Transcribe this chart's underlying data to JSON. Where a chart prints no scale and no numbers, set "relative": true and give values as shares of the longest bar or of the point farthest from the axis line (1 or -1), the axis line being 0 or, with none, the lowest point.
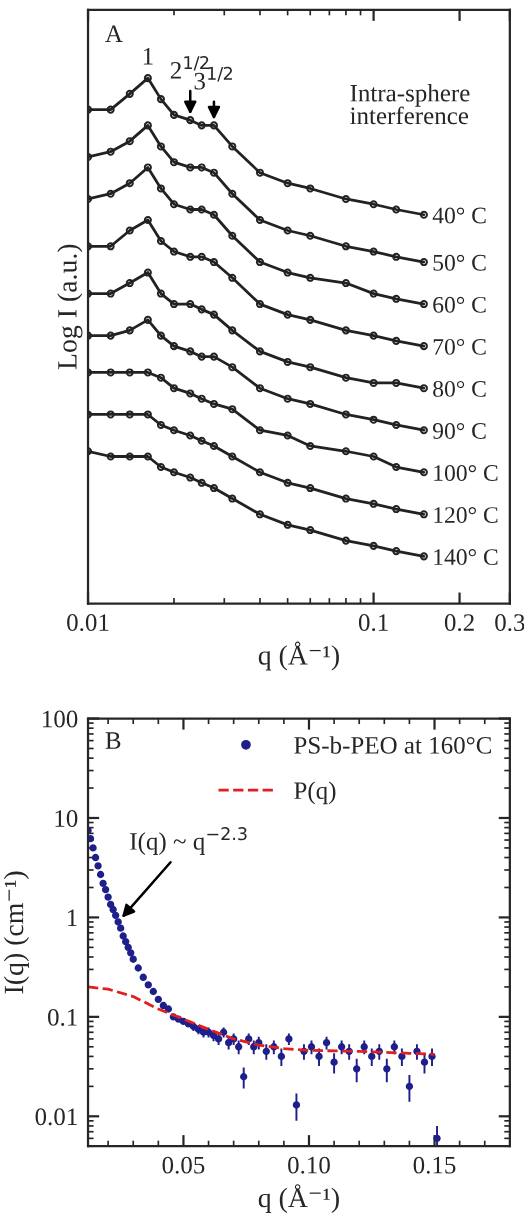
{
  "chart_data": [
    {
      "type": "line",
      "relative": true,
      "log": "x",
      "marker": "circle",
      "tick_labels": "x",
      "xlabel": "q (Å⁻¹)",
      "ylabel": "Log I (a.u.)",
      "xlim": [
        0.01,
        0.3
      ],
      "xticks": [
        0.01,
        0.1,
        0.2,
        0.3
      ],
      "x": [
        0.01,
        0.012,
        0.014,
        0.0162,
        0.018,
        0.02,
        0.0228,
        0.025,
        0.0276,
        0.032,
        0.04,
        0.05,
        0.06,
        0.08,
        0.1,
        0.12,
        0.15
      ],
      "series": [
        {
          "name": "40° C",
          "color": "#222222",
          "values": [
            0.94,
            0.94,
            0.97,
            1.0,
            0.96,
            0.93,
            0.92,
            0.91,
            0.91,
            0.87,
            0.82,
            0.8,
            0.79,
            0.77,
            0.76,
            0.75,
            0.74
          ]
        },
        {
          "name": "50° C",
          "color": "#222222",
          "values": [
            0.85,
            0.86,
            0.88,
            0.91,
            0.87,
            0.84,
            0.83,
            0.83,
            0.82,
            0.78,
            0.73,
            0.71,
            0.7,
            0.68,
            0.67,
            0.66,
            0.65
          ]
        },
        {
          "name": "60° C",
          "color": "#222222",
          "values": [
            0.77,
            0.78,
            0.8,
            0.83,
            0.79,
            0.76,
            0.75,
            0.75,
            0.74,
            0.7,
            0.65,
            0.63,
            0.62,
            0.61,
            0.59,
            0.58,
            0.57
          ]
        },
        {
          "name": "70° C",
          "color": "#222222",
          "values": [
            0.68,
            0.68,
            0.71,
            0.73,
            0.69,
            0.67,
            0.66,
            0.66,
            0.65,
            0.62,
            0.57,
            0.55,
            0.54,
            0.52,
            0.51,
            0.5,
            0.49
          ]
        },
        {
          "name": "80° C",
          "color": "#222222",
          "values": [
            0.59,
            0.59,
            0.61,
            0.63,
            0.59,
            0.57,
            0.57,
            0.56,
            0.55,
            0.52,
            0.48,
            0.46,
            0.45,
            0.43,
            0.42,
            0.42,
            0.41
          ]
        },
        {
          "name": "90° C",
          "color": "#222222",
          "values": [
            0.51,
            0.51,
            0.52,
            0.54,
            0.51,
            0.49,
            0.48,
            0.47,
            0.47,
            0.45,
            0.41,
            0.39,
            0.38,
            0.36,
            0.35,
            0.34,
            0.33
          ]
        },
        {
          "name": "100° C",
          "color": "#222222",
          "values": [
            0.44,
            0.44,
            0.44,
            0.44,
            0.43,
            0.41,
            0.4,
            0.39,
            0.38,
            0.37,
            0.33,
            0.32,
            0.3,
            0.29,
            0.28,
            0.26,
            0.25
          ]
        },
        {
          "name": "120° C",
          "color": "#222222",
          "values": [
            0.36,
            0.36,
            0.36,
            0.36,
            0.34,
            0.33,
            0.32,
            0.31,
            0.3,
            0.28,
            0.25,
            0.23,
            0.22,
            0.2,
            0.19,
            0.18,
            0.17
          ]
        },
        {
          "name": "140° C",
          "color": "#222222",
          "values": [
            0.29,
            0.28,
            0.28,
            0.28,
            0.26,
            0.25,
            0.24,
            0.23,
            0.22,
            0.2,
            0.17,
            0.15,
            0.14,
            0.12,
            0.11,
            0.1,
            0.09
          ]
        }
      ],
      "annotations": [
        "A",
        "Intra-sphere\ninterference",
        {
          "text": "1",
          "x": 0.0162,
          "y": 1.0
        },
        {
          "text": "2$^{1/2}$",
          "x": 0.0228,
          "y": 0.92
        },
        {
          "text": "3$^{1/2}$",
          "x": 0.0276,
          "y": 0.91
        }
      ]
    },
    {
      "type": "scatter",
      "log": "y",
      "legend": "top right",
      "xlabel": "q (Å⁻¹)",
      "ylabel": "I(q) (cm⁻¹)",
      "xlim": [
        0.012,
        0.18
      ],
      "xticks": [
        {
          "value": 0.05,
          "label": "0.05"
        },
        {
          "value": 0.1,
          "label": "0.10"
        },
        {
          "value": 0.15,
          "label": "0.15"
        }
      ],
      "ylim": [
        0.005,
        100
      ],
      "yticks": [
        0.01,
        0.1,
        1,
        10,
        100
      ],
      "series": [
        {
          "name": "PS-b-PEO at 160°C",
          "color": "#1f1f8c",
          "marker": "circle",
          "x": [
            0.012,
            0.013,
            0.014,
            0.015,
            0.016,
            0.017,
            0.018,
            0.019,
            0.02,
            0.021,
            0.022,
            0.023,
            0.024,
            0.025,
            0.026,
            0.027,
            0.028,
            0.029,
            0.03,
            0.032,
            0.034,
            0.036,
            0.038,
            0.04,
            0.042,
            0.044,
            0.046,
            0.048,
            0.05,
            0.052,
            0.054,
            0.056,
            0.058,
            0.06,
            0.062,
            0.064,
            0.066,
            0.068,
            0.07,
            0.072,
            0.074,
            0.076,
            0.078,
            0.08,
            0.083,
            0.086,
            0.089,
            0.092,
            0.095,
            0.098,
            0.101,
            0.104,
            0.107,
            0.11,
            0.113,
            0.116,
            0.119,
            0.122,
            0.125,
            0.128,
            0.131,
            0.134,
            0.137,
            0.14,
            0.143,
            0.146,
            0.149,
            0.151
          ],
          "values": [
            7.5,
            6.2,
            5.0,
            4.0,
            3.3,
            2.7,
            2.2,
            1.9,
            1.6,
            1.35,
            1.2,
            1.05,
            0.9,
            0.78,
            0.65,
            0.57,
            0.5,
            0.44,
            0.38,
            0.31,
            0.25,
            0.21,
            0.18,
            0.15,
            0.13,
            0.12,
            0.1,
            0.095,
            0.09,
            0.085,
            0.08,
            0.075,
            0.07,
            0.07,
            0.065,
            0.06,
            0.07,
            0.055,
            0.06,
            0.05,
            0.025,
            0.06,
            0.05,
            0.055,
            0.045,
            0.05,
            0.04,
            0.06,
            0.013,
            0.045,
            0.05,
            0.04,
            0.055,
            0.035,
            0.05,
            0.045,
            0.03,
            0.05,
            0.04,
            0.045,
            0.03,
            0.05,
            0.04,
            0.02,
            0.045,
            0.035,
            0.04,
            0.006
          ],
          "errors": [
            null,
            null,
            null,
            null,
            null,
            null,
            null,
            null,
            null,
            null,
            null,
            null,
            null,
            null,
            null,
            null,
            null,
            null,
            null,
            null,
            null,
            null,
            null,
            null,
            null,
            null,
            null,
            null,
            null,
            null,
            0.008,
            0.008,
            0.008,
            0.008,
            0.008,
            0.008,
            0.008,
            0.008,
            0.008,
            0.008,
            0.006,
            0.008,
            0.008,
            0.008,
            0.008,
            0.008,
            0.008,
            0.008,
            0.004,
            0.008,
            0.008,
            0.008,
            0.008,
            0.008,
            0.008,
            0.008,
            0.008,
            0.008,
            0.008,
            0.008,
            0.008,
            0.008,
            0.008,
            0.006,
            0.008,
            0.008,
            0.008,
            0.002
          ]
        },
        {
          "name": "P(q)",
          "type": "line",
          "line_style": "dashed",
          "color": "#e02020",
          "x": [
            0.012,
            0.02,
            0.03,
            0.04,
            0.05,
            0.06,
            0.07,
            0.08,
            0.09,
            0.1,
            0.12,
            0.14,
            0.15
          ],
          "values": [
            0.2,
            0.19,
            0.16,
            0.12,
            0.095,
            0.075,
            0.06,
            0.052,
            0.048,
            0.046,
            0.045,
            0.043,
            0.042
          ]
        }
      ],
      "annotations": [
        "B",
        {
          "text": "I(q) ~ q$^{−2.3}$",
          "x": 0.024,
          "y": 0.9
        }
      ]
    }
  ]
}
